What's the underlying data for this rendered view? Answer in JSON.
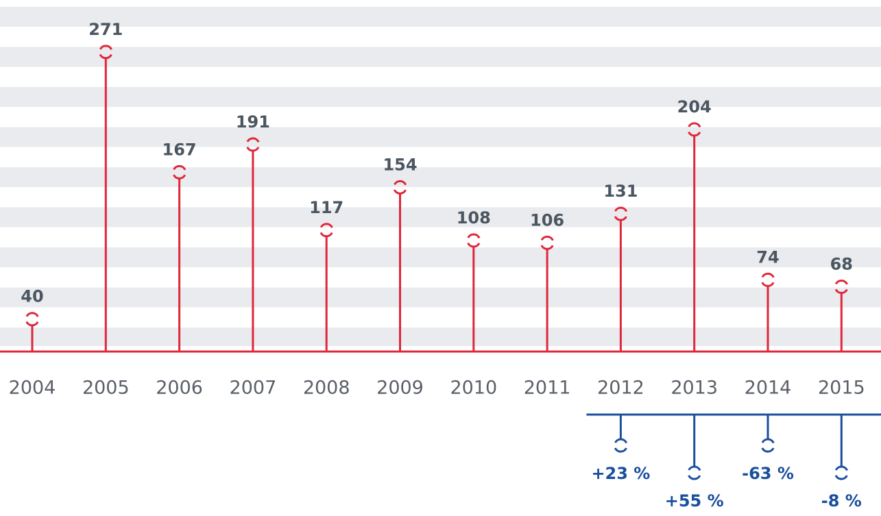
{
  "chart_data": {
    "type": "lollipop",
    "categories": [
      "2004",
      "2005",
      "2006",
      "2007",
      "2008",
      "2009",
      "2010",
      "2011",
      "2012",
      "2013",
      "2014",
      "2015"
    ],
    "values": [
      40,
      271,
      167,
      191,
      117,
      154,
      108,
      106,
      131,
      204,
      74,
      68
    ],
    "color": "#e0263a",
    "ylim": [
      12,
      310
    ],
    "changes": {
      "color": "#1a4f9c",
      "values": [
        23,
        55,
        -63,
        -8
      ],
      "value_labels": [
        "+23 %",
        "+55 %",
        "-63 %",
        "-8 %"
      ]
    }
  }
}
